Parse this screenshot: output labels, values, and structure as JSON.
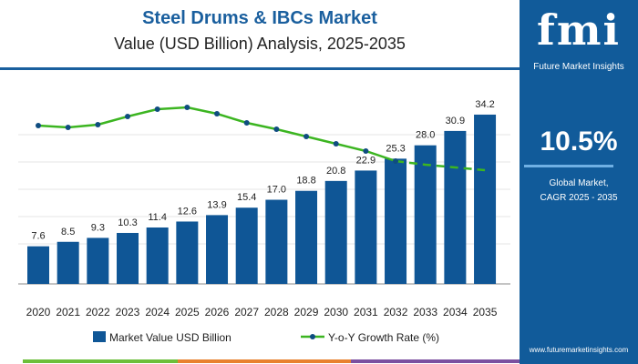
{
  "chart_data": {
    "type": "bar",
    "title": "Steel Drums & IBCs Market",
    "subtitle": "Value (USD Billion) Analysis, 2025-2035",
    "categories": [
      "2020",
      "2021",
      "2022",
      "2023",
      "2024",
      "2025",
      "2026",
      "2027",
      "2028",
      "2029",
      "2030",
      "2031",
      "2032",
      "2033",
      "2034",
      "2035"
    ],
    "series": [
      {
        "name": "Market Value USD Billion",
        "type": "bar",
        "color": "#0f5696",
        "values": [
          7.6,
          8.5,
          9.3,
          10.3,
          11.4,
          12.6,
          13.9,
          15.4,
          17.0,
          18.8,
          20.8,
          22.9,
          25.3,
          28.0,
          30.9,
          34.2
        ]
      },
      {
        "name": "Y-o-Y Growth Rate (%)",
        "type": "line",
        "color": "#3cb521",
        "values": [
          11.0,
          10.9,
          11.05,
          11.5,
          11.9,
          12.0,
          11.65,
          11.15,
          10.8,
          10.4,
          10.0,
          9.6,
          9.05,
          8.85,
          8.7,
          8.55
        ]
      }
    ],
    "labels": [
      "7.6",
      "8.5",
      "9.3",
      "10.3",
      "11.4",
      "12.6",
      "13.9",
      "15.4",
      "17.0",
      "18.8",
      "20.8",
      "22.9",
      "25.3",
      "28.0",
      "30.9",
      "34.2"
    ],
    "ylim": [
      0,
      36
    ],
    "legend": "bottom"
  },
  "panel": {
    "logo": "fmi",
    "logo_sub": "Future Market Insights",
    "cagr": "10.5%",
    "cagr_label1": "Global Market,",
    "cagr_label2": "CAGR 2025 - 2035",
    "url": "www.futuremarketinsights.com"
  }
}
